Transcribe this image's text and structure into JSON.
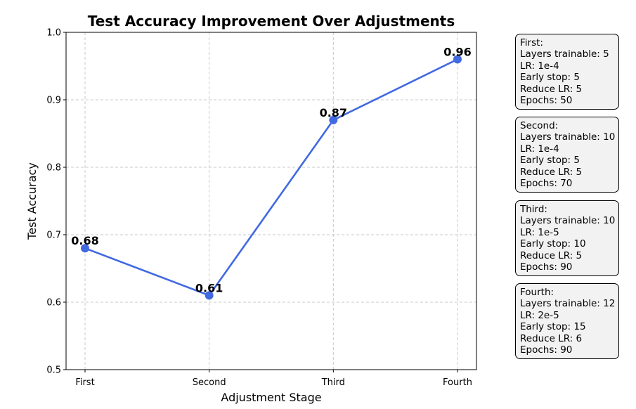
{
  "chart_data": {
    "type": "line",
    "title": "Test Accuracy Improvement Over Adjustments",
    "xlabel": "Adjustment Stage",
    "ylabel": "Test Accuracy",
    "categories": [
      "First",
      "Second",
      "Third",
      "Fourth"
    ],
    "series": [
      {
        "values": [
          0.68,
          0.61,
          0.87,
          0.96
        ],
        "color": "#4169e1"
      }
    ],
    "data_labels": [
      "0.68",
      "0.61",
      "0.87",
      "0.96"
    ],
    "ylim": [
      0.5,
      1.0
    ],
    "yticks": [
      "0.5",
      "0.6",
      "0.7",
      "0.8",
      "0.9",
      "1.0"
    ],
    "grid": true,
    "grid_style": "dashed"
  },
  "info_boxes": [
    {
      "lines": [
        "First:",
        "Layers trainable: 5",
        "LR: 1e-4",
        "Early stop: 5",
        "Reduce LR: 5",
        "Epochs: 50"
      ]
    },
    {
      "lines": [
        "Second:",
        "Layers trainable: 10",
        "LR: 1e-4",
        "Early stop: 5",
        "Reduce LR: 5",
        "Epochs: 70"
      ]
    },
    {
      "lines": [
        "Third:",
        "Layers trainable: 10",
        "LR: 1e-5",
        "Early stop: 10",
        "Reduce LR: 5",
        "Epochs: 90"
      ]
    },
    {
      "lines": [
        "Fourth:",
        "Layers trainable: 12",
        "LR: 2e-5",
        "Early stop: 15",
        "Reduce LR: 6",
        "Epochs: 90"
      ]
    }
  ]
}
